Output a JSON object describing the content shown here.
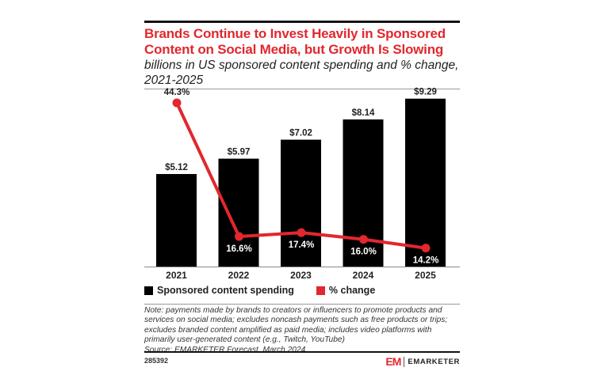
{
  "header": {
    "title": "Brands Continue to Invest Heavily in Sponsored Content on Social Media, but Growth Is Slowing",
    "subtitle": "billions in US sponsored content spending and % change, 2021-2025"
  },
  "chart_data": {
    "type": "bar",
    "title": "Brands Continue to Invest Heavily in Sponsored Content on Social Media, but Growth Is Slowing",
    "subtitle": "billions in US sponsored content spending and % change, 2021-2025",
    "categories": [
      "2021",
      "2022",
      "2023",
      "2024",
      "2025"
    ],
    "series": [
      {
        "name": "Sponsored content spending",
        "type": "bar",
        "unit": "billions USD",
        "values": [
          5.12,
          5.97,
          7.02,
          8.14,
          9.29
        ],
        "labels": [
          "$5.12",
          "$5.97",
          "$7.02",
          "$8.14",
          "$9.29"
        ],
        "color": "#000000"
      },
      {
        "name": "% change",
        "type": "line",
        "unit": "%",
        "values": [
          44.3,
          16.6,
          17.4,
          16.0,
          14.2
        ],
        "labels": [
          "44.3%",
          "16.6%",
          "17.4%",
          "16.0%",
          "14.2%"
        ],
        "color": "#e2272e"
      }
    ],
    "xlabel": "",
    "ylabel": "",
    "grid": false,
    "legend": "bottom-left"
  },
  "legend": {
    "items": [
      {
        "label": "Sponsored content spending",
        "color": "#000000"
      },
      {
        "label": "% change",
        "color": "#e2272e"
      }
    ]
  },
  "footer": {
    "note": "Note: payments made by brands to creators or influencers to promote products and services on social media; excludes noncash payments such as free products or trips; excludes branded content amplified as paid media; includes video platforms with primarily user-generated content (e.g., Twitch, YouTube)",
    "source": "Source: EMARKETER Forecast, March 2024",
    "chart_id": "285392",
    "brand_mark": "EM",
    "brand_name": "EMARKETER"
  }
}
